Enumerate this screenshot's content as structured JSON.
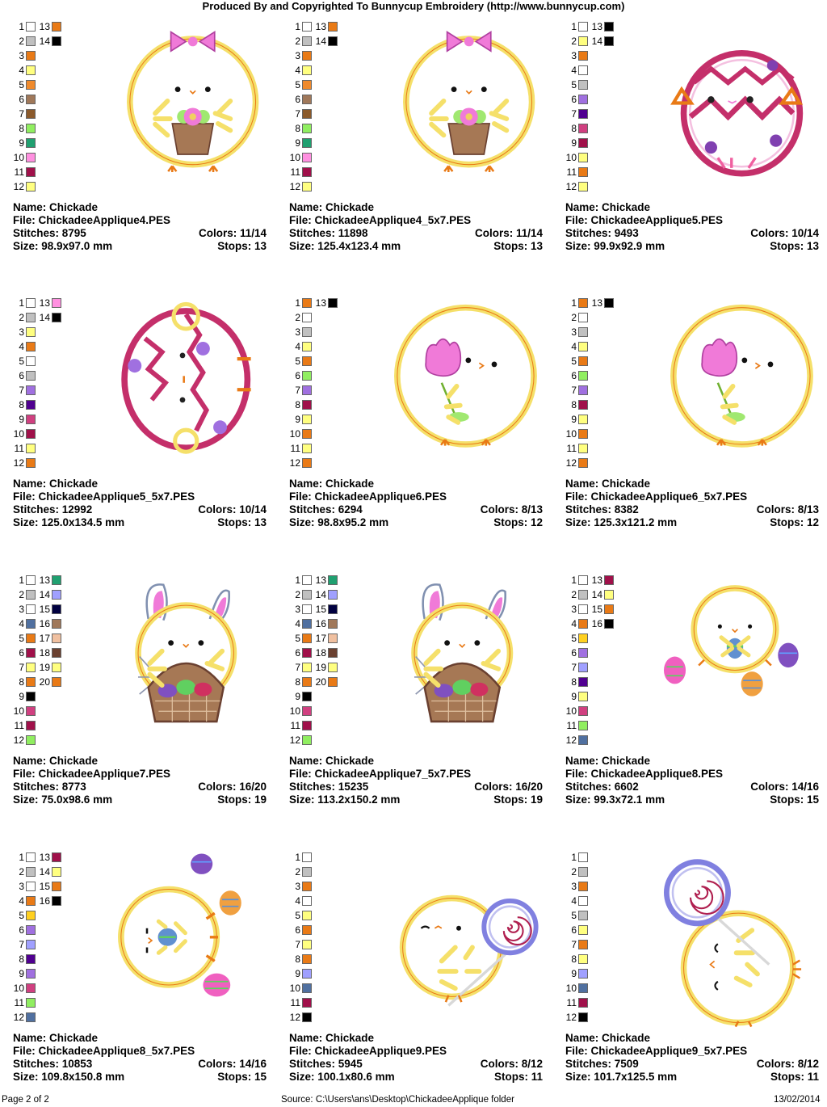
{
  "header": {
    "title": "Produced By and Copyrighted To Bunnycup Embroidery (http://www.bunnycup.com)"
  },
  "footer": {
    "page": "Page 2 of 2",
    "source": "Source: C:\\Users\\ans\\Desktop\\ChickadeeApplique folder",
    "date": "13/02/2014"
  },
  "labels": {
    "name": "Name:",
    "file": "File:",
    "stitches": "Stitches:",
    "size": "Size:",
    "colors": "Colors:",
    "stops": "Stops:"
  },
  "designs": [
    {
      "name": "Chickade",
      "file": "ChickadeeApplique4.PES",
      "stitches": "8795",
      "colors": "11/14",
      "size": "98.9x97.0 mm",
      "stops": "13",
      "art": "chick-basket-bow",
      "swatches": [
        "#ffffff",
        "#c0c0c0",
        "#e97a16",
        "#ffff80",
        "#f08a2c",
        "#a0785a",
        "#8b5a2b",
        "#90ee60",
        "#20a070",
        "#ff90e0",
        "#a0104a",
        "#ffff80",
        "#e97a16",
        "#000000"
      ]
    },
    {
      "name": "Chickade",
      "file": "ChickadeeApplique4_5x7.PES",
      "stitches": "11898",
      "colors": "11/14",
      "size": "125.4x123.4 mm",
      "stops": "13",
      "art": "chick-basket-bow",
      "swatches": [
        "#ffffff",
        "#c0c0c0",
        "#e97a16",
        "#ffff80",
        "#f08a2c",
        "#a0785a",
        "#8b5a2b",
        "#90ee60",
        "#20a070",
        "#ff90e0",
        "#a0104a",
        "#ffff80",
        "#e97a16",
        "#000000"
      ]
    },
    {
      "name": "Chickade",
      "file": "ChickadeeApplique5.PES",
      "stitches": "9493",
      "colors": "10/14",
      "size": "99.9x92.9 mm",
      "stops": "13",
      "art": "chick-egg",
      "swatches": [
        "#ffffff",
        "#ffff80",
        "#e97a16",
        "#ffffff",
        "#c0c0c0",
        "#a070e0",
        "#500090",
        "#d04080",
        "#a0104a",
        "#ffff80",
        "#e97a16",
        "#ffff80",
        "#000000",
        "#000000"
      ]
    },
    {
      "name": "Chickade",
      "file": "ChickadeeApplique5_5x7.PES",
      "stitches": "12992",
      "colors": "10/14",
      "size": "125.0x134.5 mm",
      "stops": "13",
      "art": "chick-egg-side",
      "swatches": [
        "#ffffff",
        "#c0c0c0",
        "#ffff80",
        "#e97a16",
        "#ffffff",
        "#c0c0c0",
        "#a070e0",
        "#500090",
        "#d04080",
        "#a0104a",
        "#ffff80",
        "#e97a16",
        "#ff90e0",
        "#000000"
      ]
    },
    {
      "name": "Chickade",
      "file": "ChickadeeApplique6.PES",
      "stitches": "6294",
      "colors": "8/13",
      "size": "98.8x95.2 mm",
      "stops": "12",
      "art": "chick-tulip",
      "swatches": [
        "#e97a16",
        "#ffffff",
        "#c0c0c0",
        "#ffff80",
        "#e97a16",
        "#90ee60",
        "#a070e0",
        "#a0104a",
        "#ffff80",
        "#e97a16",
        "#ffff80",
        "#e97a16",
        "#000000"
      ]
    },
    {
      "name": "Chickade",
      "file": "ChickadeeApplique6_5x7.PES",
      "stitches": "8382",
      "colors": "8/13",
      "size": "125.3x121.2 mm",
      "stops": "12",
      "art": "chick-tulip",
      "swatches": [
        "#e97a16",
        "#ffffff",
        "#c0c0c0",
        "#ffff80",
        "#e97a16",
        "#90ee60",
        "#a070e0",
        "#a0104a",
        "#ffff80",
        "#e97a16",
        "#ffff80",
        "#e97a16",
        "#000000"
      ]
    },
    {
      "name": "Chickade",
      "file": "ChickadeeApplique7.PES",
      "stitches": "8773",
      "colors": "16/20",
      "size": "75.0x98.6 mm",
      "stops": "19",
      "art": "chick-bunny",
      "swatches": [
        "#ffffff",
        "#c0c0c0",
        "#ffffff",
        "#5070a0",
        "#e97a16",
        "#a0104a",
        "#ffff80",
        "#e97a16",
        "#000000",
        "#d04080",
        "#a0104a",
        "#90ee60",
        "#20a070",
        "#a0a0ff",
        "#000040",
        "#a0785a",
        "#f0c0a0",
        "#6a4030",
        "#ffff80",
        "#e97a16"
      ]
    },
    {
      "name": "Chickade",
      "file": "ChickadeeApplique7_5x7.PES",
      "stitches": "15235",
      "colors": "16/20",
      "size": "113.2x150.2 mm",
      "stops": "19",
      "art": "chick-bunny",
      "swatches": [
        "#ffffff",
        "#c0c0c0",
        "#ffffff",
        "#5070a0",
        "#e97a16",
        "#a0104a",
        "#ffff80",
        "#e97a16",
        "#000000",
        "#d04080",
        "#a0104a",
        "#90ee60",
        "#20a070",
        "#a0a0ff",
        "#000040",
        "#a0785a",
        "#f0c0a0",
        "#6a4030",
        "#ffff80",
        "#e97a16"
      ]
    },
    {
      "name": "Chickade",
      "file": "ChickadeeApplique8.PES",
      "stitches": "6602",
      "colors": "14/16",
      "size": "99.3x72.1 mm",
      "stops": "15",
      "art": "chick-eggs",
      "swatches": [
        "#ffffff",
        "#c0c0c0",
        "#ffffff",
        "#e97a16",
        "#ffd020",
        "#a070e0",
        "#a0a0ff",
        "#500090",
        "#ffff80",
        "#d04080",
        "#90ee60",
        "#5070a0",
        "#a0104a",
        "#ffff80",
        "#e97a16",
        "#000000"
      ]
    },
    {
      "name": "Chickade",
      "file": "ChickadeeApplique8_5x7.PES",
      "stitches": "10853",
      "colors": "14/16",
      "size": "109.8x150.8 mm",
      "stops": "15",
      "art": "chick-eggs-tall",
      "swatches": [
        "#ffffff",
        "#c0c0c0",
        "#ffffff",
        "#e97a16",
        "#ffd020",
        "#a070e0",
        "#a0a0ff",
        "#500090",
        "#a070e0",
        "#d04080",
        "#90ee60",
        "#5070a0",
        "#a0104a",
        "#ffff80",
        "#e97a16",
        "#000000"
      ]
    },
    {
      "name": "Chickade",
      "file": "ChickadeeApplique9.PES",
      "stitches": "5945",
      "colors": "8/12",
      "size": "100.1x80.6 mm",
      "stops": "11",
      "art": "chick-lollipop",
      "swatches": [
        "#ffffff",
        "#c0c0c0",
        "#e97a16",
        "#ffffff",
        "#ffff80",
        "#e97a16",
        "#ffff80",
        "#e97a16",
        "#a0a0ff",
        "#5070a0",
        "#a0104a",
        "#000000"
      ]
    },
    {
      "name": "Chickade",
      "file": "ChickadeeApplique9_5x7.PES",
      "stitches": "7509",
      "colors": "8/12",
      "size": "101.7x125.5 mm",
      "stops": "11",
      "art": "chick-lollipop-tall",
      "swatches": [
        "#ffffff",
        "#c0c0c0",
        "#e97a16",
        "#ffffff",
        "#c0c0c0",
        "#ffff80",
        "#e97a16",
        "#ffff80",
        "#a0a0ff",
        "#5070a0",
        "#a0104a",
        "#000000"
      ]
    }
  ]
}
